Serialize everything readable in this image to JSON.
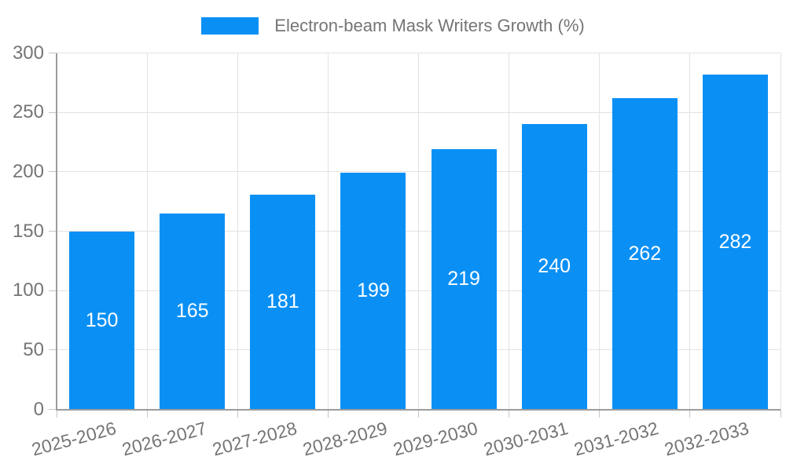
{
  "legend": {
    "label": "Electron-beam Mask Writers Growth (%)"
  },
  "chart_data": {
    "type": "bar",
    "title": "Electron-beam Mask Writers Growth (%)",
    "categories": [
      "2025-2026",
      "2026-2027",
      "2027-2028",
      "2028-2029",
      "2029-2030",
      "2030-2031",
      "2031-2032",
      "2032-2033"
    ],
    "values": [
      150,
      165,
      181,
      199,
      219,
      240,
      262,
      282
    ],
    "xlabel": "",
    "ylabel": "",
    "ylim": [
      0,
      300
    ],
    "yticks": [
      0,
      50,
      100,
      150,
      200,
      250,
      300
    ],
    "grid": true,
    "legend_position": "top",
    "colors": {
      "bar": "#0a90f5",
      "bar_value_text": "#ffffff",
      "grid_line": "#e2e2e2",
      "axis_line": "#9c9c9c",
      "tick_mark": "#c6c6c6",
      "tick_label": "#757575",
      "legend_text": "#757575"
    }
  }
}
